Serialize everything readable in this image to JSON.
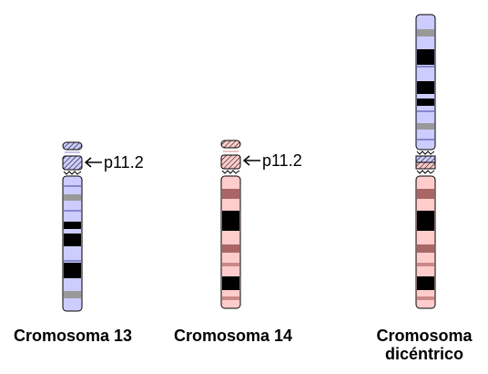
{
  "colors": {
    "chr13_base": "#ccccff",
    "chr14_base": "#ffcccc",
    "dark_band": "#000000",
    "gray_band_13": "#999999",
    "gray_band_14": "#aa6666",
    "outline": "#000000"
  },
  "chromosomes": [
    {
      "id": "chr13",
      "caption_lines": [
        "Cromosoma 13"
      ],
      "callout": "p11.2"
    },
    {
      "id": "chr14",
      "caption_lines": [
        "Cromosoma 14"
      ],
      "callout": "p11.2"
    },
    {
      "id": "dicentric",
      "caption_lines": [
        "Cromosoma",
        "dicéntrico"
      ],
      "callout": ""
    }
  ]
}
